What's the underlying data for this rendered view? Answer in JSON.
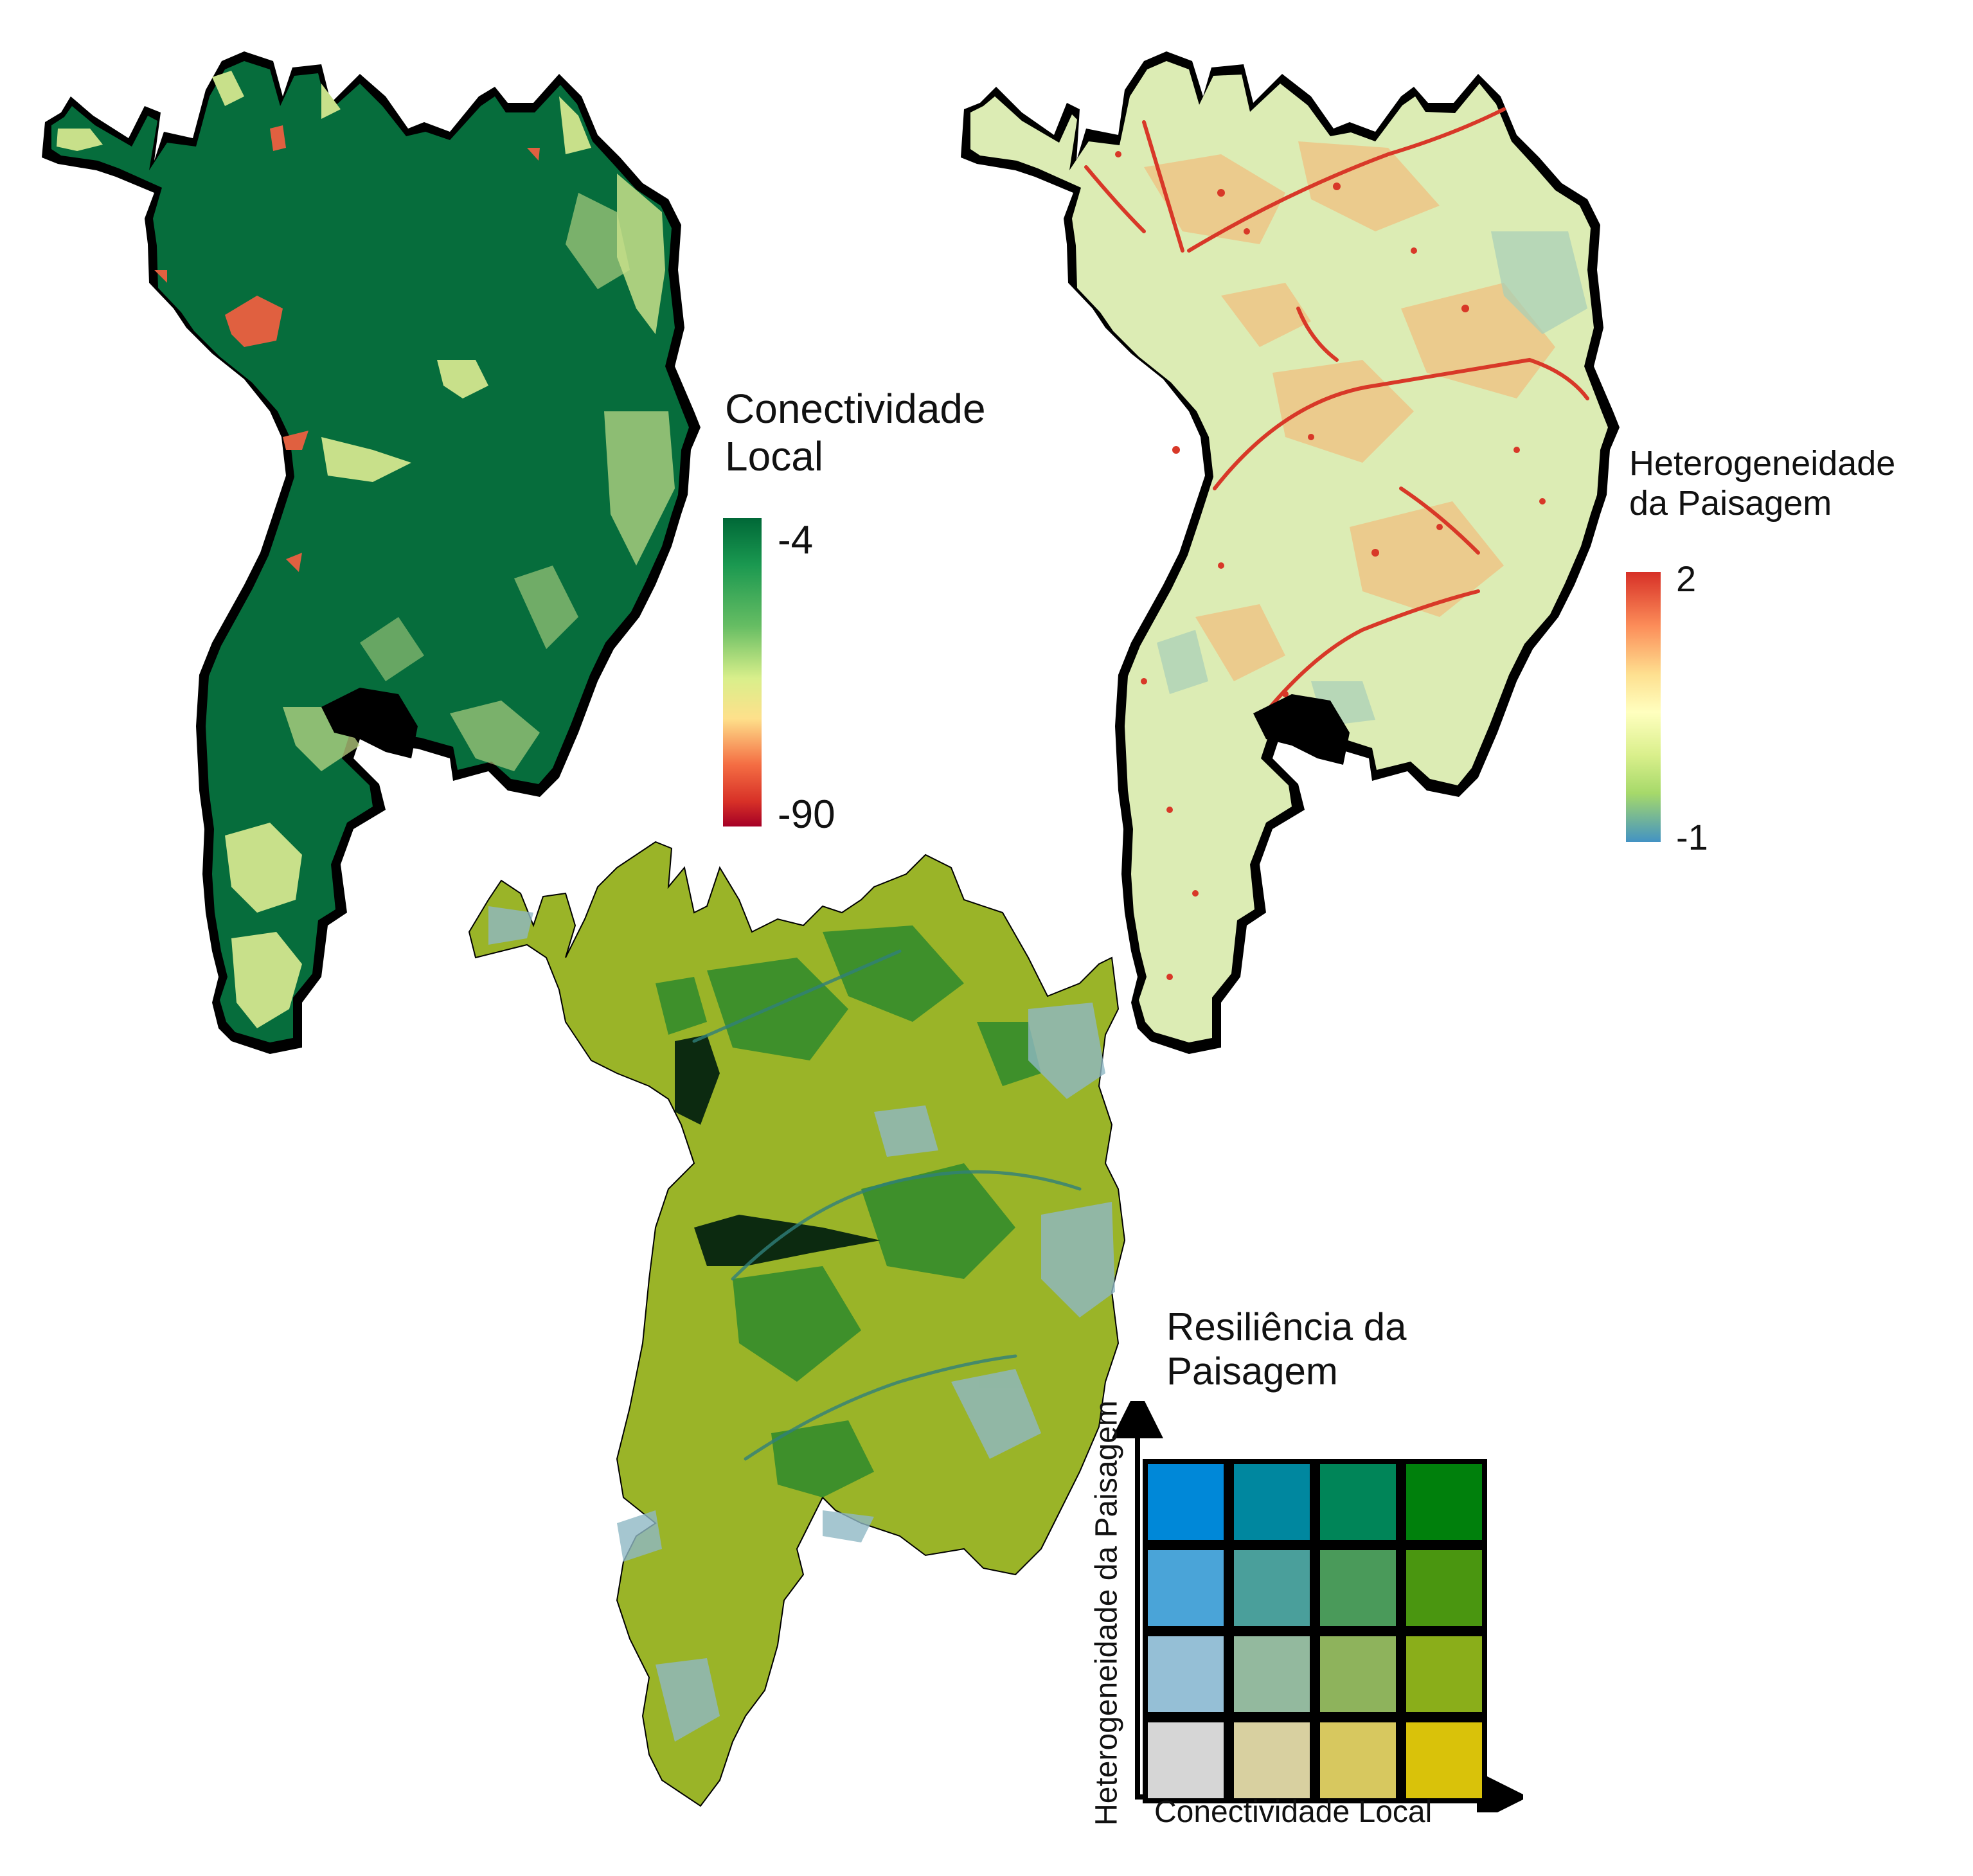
{
  "connectivity_legend": {
    "title_line1": "Conectividade",
    "title_line2": "Local",
    "max_label": "-4",
    "min_label": "-90",
    "colors": [
      "#006837",
      "#1a9850",
      "#66bd63",
      "#d9ef8b",
      "#fee08b",
      "#f46d43",
      "#d73027",
      "#a50026"
    ]
  },
  "heterogeneity_legend": {
    "title_line1": "Heterogeneidade",
    "title_line2": "da Paisagem",
    "max_label": "2",
    "min_label": "-1",
    "colors": [
      "#d73027",
      "#fc8d59",
      "#fee090",
      "#ffffbf",
      "#d9ef8b",
      "#a6d96a",
      "#4393c3"
    ]
  },
  "resilience_legend": {
    "title_line1": "Resiliência da",
    "title_line2": "Paisagem",
    "y_axis_label": "Heterogeneidade da Paisagem",
    "x_axis_label": "Conectividade Local",
    "grid_colors": [
      [
        "#0088d8",
        "#00879f",
        "#008558",
        "#00800c"
      ],
      [
        "#4aa4d8",
        "#4a9f9b",
        "#4a9a5a",
        "#4a9610"
      ],
      [
        "#95bfd6",
        "#93b99e",
        "#8eb35c",
        "#8aae1a"
      ],
      [
        "#d6d6d6",
        "#d8d0a0",
        "#d7c85f",
        "#d9c20a"
      ]
    ]
  },
  "map_colors": {
    "connectivity_base": "#066d3c",
    "connectivity_light": "#c8e08a",
    "connectivity_low": "#e06040",
    "heterogeneity_base": "#dcecb4",
    "heterogeneity_warm": "#f0c080",
    "heterogeneity_hot": "#d83828",
    "resilience_base": "#9ab428",
    "resilience_green": "#2e8a2c",
    "resilience_blue": "#8eb8c4",
    "resilience_dark": "#0c2a10",
    "outline": "#000000"
  }
}
